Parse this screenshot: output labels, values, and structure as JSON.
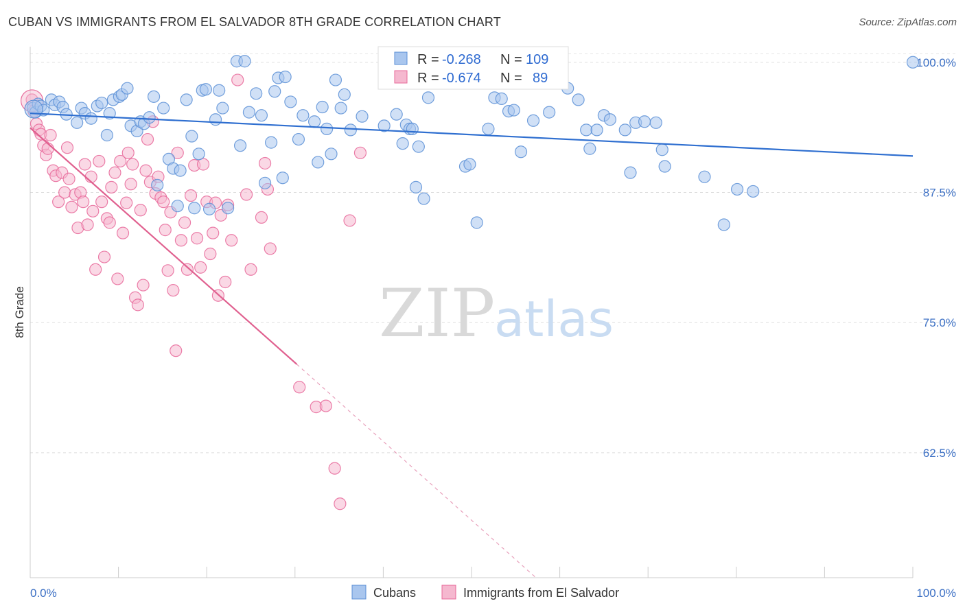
{
  "title": "CUBAN VS IMMIGRANTS FROM EL SALVADOR 8TH GRADE CORRELATION CHART",
  "source": "Source: ZipAtlas.com",
  "colors": {
    "blue": "#5b8fd6",
    "blue_fill": "#a9c6ee",
    "pink": "#e8699a",
    "pink_fill": "#f5b8cf",
    "tick": "#3b6fc4"
  },
  "chart_data": {
    "type": "scatter",
    "title": "CUBAN VS IMMIGRANTS FROM EL SALVADOR 8TH GRADE CORRELATION CHART",
    "xlabel": "",
    "ylabel": "8th Grade",
    "xlim": [
      0,
      100
    ],
    "ylim": [
      50.5,
      101.5
    ],
    "x_tick_labels": [
      "0.0%",
      "100.0%"
    ],
    "y_ticks": [
      100.0,
      87.5,
      75.0,
      62.5
    ],
    "y_tick_labels": [
      "100.0%",
      "87.5%",
      "75.0%",
      "62.5%"
    ],
    "grid": true,
    "legend": {
      "position": "top-center",
      "entries": [
        {
          "r_label": "R =",
          "r_value": "-0.268",
          "n_label": "N =",
          "n_value": "109"
        },
        {
          "r_label": "R =",
          "r_value": "-0.674",
          "n_label": "N =",
          "n_value": "89"
        }
      ]
    },
    "series": [
      {
        "name": "Cubans",
        "color": "#5b8fd6",
        "trend": {
          "x": [
            0,
            100
          ],
          "y": [
            95.1,
            91.0
          ]
        },
        "points": [
          [
            0.3,
            95.6
          ],
          [
            0.6,
            95.2
          ],
          [
            0.9,
            96.0
          ],
          [
            1.2,
            95.8
          ],
          [
            1.5,
            95.4
          ],
          [
            2.4,
            96.4
          ],
          [
            2.8,
            95.9
          ],
          [
            3.3,
            96.2
          ],
          [
            3.7,
            95.7
          ],
          [
            4.1,
            95.0
          ],
          [
            5.3,
            94.2
          ],
          [
            5.8,
            95.6
          ],
          [
            6.2,
            95.1
          ],
          [
            6.9,
            94.6
          ],
          [
            7.6,
            95.8
          ],
          [
            8.1,
            96.1
          ],
          [
            8.7,
            93.0
          ],
          [
            9.0,
            95.1
          ],
          [
            9.4,
            96.4
          ],
          [
            10.1,
            96.7
          ],
          [
            10.4,
            96.9
          ],
          [
            11.0,
            97.5
          ],
          [
            11.4,
            93.9
          ],
          [
            12.1,
            93.4
          ],
          [
            12.5,
            94.3
          ],
          [
            12.9,
            94.1
          ],
          [
            13.5,
            94.7
          ],
          [
            14.0,
            96.7
          ],
          [
            14.4,
            88.2
          ],
          [
            15.1,
            95.6
          ],
          [
            15.7,
            90.7
          ],
          [
            16.2,
            89.8
          ],
          [
            16.7,
            86.2
          ],
          [
            17.0,
            89.6
          ],
          [
            17.7,
            96.4
          ],
          [
            18.3,
            92.9
          ],
          [
            18.6,
            86.0
          ],
          [
            19.1,
            91.2
          ],
          [
            19.5,
            97.3
          ],
          [
            19.9,
            97.4
          ],
          [
            20.3,
            85.9
          ],
          [
            21.0,
            94.5
          ],
          [
            21.4,
            97.3
          ],
          [
            21.8,
            95.6
          ],
          [
            22.4,
            86.0
          ],
          [
            23.4,
            100.1
          ],
          [
            23.8,
            92.0
          ],
          [
            24.3,
            100.1
          ],
          [
            24.8,
            95.2
          ],
          [
            25.6,
            97.0
          ],
          [
            26.2,
            94.9
          ],
          [
            26.6,
            88.4
          ],
          [
            27.3,
            92.3
          ],
          [
            27.7,
            97.2
          ],
          [
            28.1,
            98.5
          ],
          [
            28.6,
            88.9
          ],
          [
            28.9,
            98.6
          ],
          [
            29.5,
            96.2
          ],
          [
            30.4,
            92.6
          ],
          [
            30.9,
            94.9
          ],
          [
            32.2,
            94.3
          ],
          [
            32.6,
            90.4
          ],
          [
            33.1,
            95.7
          ],
          [
            33.6,
            93.6
          ],
          [
            34.1,
            91.2
          ],
          [
            34.6,
            98.3
          ],
          [
            35.2,
            95.6
          ],
          [
            35.6,
            96.9
          ],
          [
            36.3,
            93.5
          ],
          [
            37.6,
            94.8
          ],
          [
            40.1,
            93.9
          ],
          [
            41.5,
            95.0
          ],
          [
            42.2,
            92.2
          ],
          [
            42.6,
            94.0
          ],
          [
            43.0,
            93.6
          ],
          [
            43.3,
            93.6
          ],
          [
            43.7,
            88.0
          ],
          [
            44.0,
            91.9
          ],
          [
            44.6,
            86.9
          ],
          [
            45.1,
            96.6
          ],
          [
            49.3,
            90.0
          ],
          [
            49.8,
            90.2
          ],
          [
            50.6,
            84.6
          ],
          [
            51.9,
            93.6
          ],
          [
            52.6,
            96.6
          ],
          [
            53.4,
            96.5
          ],
          [
            54.2,
            95.3
          ],
          [
            54.8,
            95.4
          ],
          [
            55.6,
            91.4
          ],
          [
            57.0,
            94.4
          ],
          [
            58.8,
            95.2
          ],
          [
            60.9,
            97.5
          ],
          [
            62.1,
            96.4
          ],
          [
            63.0,
            93.5
          ],
          [
            63.4,
            91.7
          ],
          [
            64.2,
            93.5
          ],
          [
            65.0,
            94.9
          ],
          [
            65.7,
            94.5
          ],
          [
            67.4,
            93.5
          ],
          [
            68.0,
            89.4
          ],
          [
            68.6,
            94.2
          ],
          [
            69.6,
            94.3
          ],
          [
            70.9,
            94.2
          ],
          [
            71.6,
            91.6
          ],
          [
            71.9,
            90.0
          ],
          [
            76.4,
            89.0
          ],
          [
            78.6,
            84.4
          ],
          [
            80.1,
            87.8
          ],
          [
            81.9,
            87.6
          ],
          [
            100.0,
            100.0
          ]
        ]
      },
      {
        "name": "Immigrants from El Salvador",
        "color": "#e8699a",
        "trend": {
          "x": [
            0,
            30.2
          ],
          "y": [
            93.7,
            71.0
          ]
        },
        "trend_extension": {
          "x": [
            30.2,
            57.3
          ],
          "y": [
            71.0,
            50.5
          ]
        },
        "points": [
          [
            0.2,
            96.4
          ],
          [
            0.4,
            95.3
          ],
          [
            0.7,
            94.1
          ],
          [
            1.0,
            93.5
          ],
          [
            1.2,
            93.1
          ],
          [
            1.5,
            92.0
          ],
          [
            1.8,
            91.1
          ],
          [
            2.0,
            91.7
          ],
          [
            2.3,
            93.0
          ],
          [
            2.6,
            89.6
          ],
          [
            2.9,
            89.1
          ],
          [
            3.2,
            86.6
          ],
          [
            3.6,
            89.4
          ],
          [
            3.9,
            87.5
          ],
          [
            4.2,
            91.8
          ],
          [
            4.4,
            88.8
          ],
          [
            4.7,
            86.1
          ],
          [
            5.1,
            87.3
          ],
          [
            5.4,
            84.1
          ],
          [
            5.7,
            87.5
          ],
          [
            6.0,
            86.6
          ],
          [
            6.2,
            90.2
          ],
          [
            6.5,
            84.4
          ],
          [
            6.9,
            89.0
          ],
          [
            7.1,
            85.7
          ],
          [
            7.4,
            80.1
          ],
          [
            7.8,
            90.5
          ],
          [
            8.1,
            86.6
          ],
          [
            8.4,
            81.3
          ],
          [
            8.7,
            85.0
          ],
          [
            9.0,
            84.6
          ],
          [
            9.2,
            88.0
          ],
          [
            9.6,
            89.4
          ],
          [
            9.9,
            79.2
          ],
          [
            10.2,
            90.5
          ],
          [
            10.5,
            83.6
          ],
          [
            10.9,
            86.5
          ],
          [
            11.1,
            91.3
          ],
          [
            11.4,
            88.3
          ],
          [
            11.6,
            90.2
          ],
          [
            11.9,
            77.4
          ],
          [
            12.2,
            76.7
          ],
          [
            12.5,
            85.8
          ],
          [
            12.8,
            78.6
          ],
          [
            13.1,
            89.6
          ],
          [
            13.3,
            92.6
          ],
          [
            13.6,
            88.5
          ],
          [
            13.9,
            94.3
          ],
          [
            14.2,
            87.4
          ],
          [
            14.5,
            89.0
          ],
          [
            14.8,
            87.0
          ],
          [
            15.1,
            86.6
          ],
          [
            15.3,
            83.9
          ],
          [
            15.6,
            80.0
          ],
          [
            15.9,
            85.6
          ],
          [
            16.2,
            78.1
          ],
          [
            16.5,
            72.3
          ],
          [
            16.7,
            91.3
          ],
          [
            17.1,
            82.9
          ],
          [
            17.5,
            84.6
          ],
          [
            17.8,
            80.1
          ],
          [
            18.2,
            87.2
          ],
          [
            18.6,
            90.1
          ],
          [
            18.9,
            83.1
          ],
          [
            19.3,
            80.3
          ],
          [
            19.6,
            90.2
          ],
          [
            20.0,
            86.6
          ],
          [
            20.4,
            81.6
          ],
          [
            20.7,
            83.6
          ],
          [
            21.0,
            86.5
          ],
          [
            21.3,
            77.6
          ],
          [
            21.6,
            85.3
          ],
          [
            22.1,
            78.9
          ],
          [
            22.4,
            86.3
          ],
          [
            22.8,
            82.9
          ],
          [
            23.5,
            98.3
          ],
          [
            24.5,
            87.3
          ],
          [
            25.0,
            80.1
          ],
          [
            26.2,
            85.1
          ],
          [
            26.6,
            90.3
          ],
          [
            26.9,
            87.8
          ],
          [
            27.2,
            82.1
          ],
          [
            30.5,
            68.8
          ],
          [
            32.4,
            66.9
          ],
          [
            33.5,
            67.0
          ],
          [
            34.5,
            61.0
          ],
          [
            35.1,
            57.6
          ],
          [
            36.2,
            84.8
          ],
          [
            37.4,
            91.3
          ]
        ]
      }
    ]
  },
  "watermark": {
    "zip": "ZIP",
    "atlas": "atlas"
  },
  "bottom_legend": [
    {
      "label": "Cubans"
    },
    {
      "label": "Immigrants from El Salvador"
    }
  ]
}
